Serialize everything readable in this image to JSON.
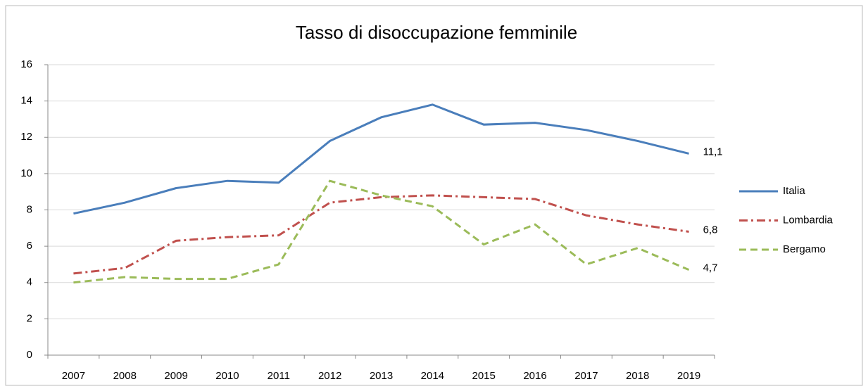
{
  "chart_data": {
    "type": "line",
    "title": "Tasso di disoccupazione femminile",
    "categories": [
      "2007",
      "2008",
      "2009",
      "2010",
      "2011",
      "2012",
      "2013",
      "2014",
      "2015",
      "2016",
      "2017",
      "2018",
      "2019"
    ],
    "series": [
      {
        "name": "Italia",
        "color": "#4a7ebb",
        "dash": "solid",
        "values": [
          7.8,
          8.4,
          9.2,
          9.6,
          9.5,
          11.8,
          13.1,
          13.8,
          12.7,
          12.8,
          12.4,
          11.8,
          11.1
        ],
        "value_labels": [
          null,
          null,
          null,
          null,
          null,
          null,
          null,
          null,
          null,
          null,
          null,
          null,
          "11,1"
        ]
      },
      {
        "name": "Lombardia",
        "color": "#c0504d",
        "dash": "dashdot",
        "values": [
          4.5,
          4.8,
          6.3,
          6.5,
          6.6,
          8.4,
          8.7,
          8.8,
          8.7,
          8.6,
          7.7,
          7.2,
          6.8
        ],
        "value_labels": [
          null,
          null,
          null,
          null,
          null,
          null,
          null,
          null,
          null,
          null,
          null,
          null,
          "6,8"
        ]
      },
      {
        "name": "Bergamo",
        "color": "#9bbb59",
        "dash": "dashed",
        "values": [
          4.0,
          4.3,
          4.2,
          4.2,
          5.0,
          9.6,
          8.8,
          8.2,
          6.1,
          7.2,
          5.0,
          5.9,
          4.7
        ],
        "value_labels": [
          null,
          null,
          null,
          null,
          null,
          null,
          null,
          null,
          null,
          null,
          null,
          null,
          "4,7"
        ]
      }
    ],
    "ylim": [
      0,
      16
    ],
    "yticks": [
      0,
      2,
      4,
      6,
      8,
      10,
      12,
      14,
      16
    ],
    "grid": true,
    "legend": "right"
  }
}
